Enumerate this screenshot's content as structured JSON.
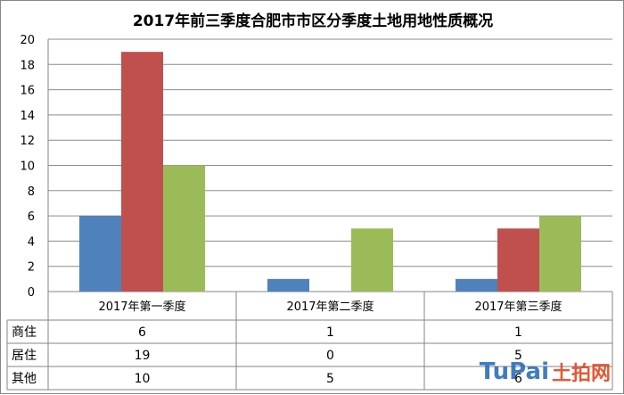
{
  "chart_data": {
    "type": "bar",
    "title": "2017年前三季度合肥市市区分季度土地用地性质概况",
    "categories": [
      "2017年第一季度",
      "2017年第二季度",
      "2017年第三季度"
    ],
    "series": [
      {
        "name": "商住",
        "values": [
          6,
          1,
          1
        ],
        "color": "#4f81bd"
      },
      {
        "name": "居住",
        "values": [
          19,
          0,
          5
        ],
        "color": "#c0504d"
      },
      {
        "name": "其他",
        "values": [
          10,
          5,
          6
        ],
        "color": "#9bbb59"
      }
    ],
    "ylim": [
      0,
      20
    ],
    "yticks": [
      0,
      2,
      4,
      6,
      8,
      10,
      12,
      14,
      16,
      18,
      20
    ],
    "grid": true,
    "legend": "data-table"
  },
  "watermark": {
    "logo_text": "TuPai",
    "logo_cn": "土拍网"
  }
}
